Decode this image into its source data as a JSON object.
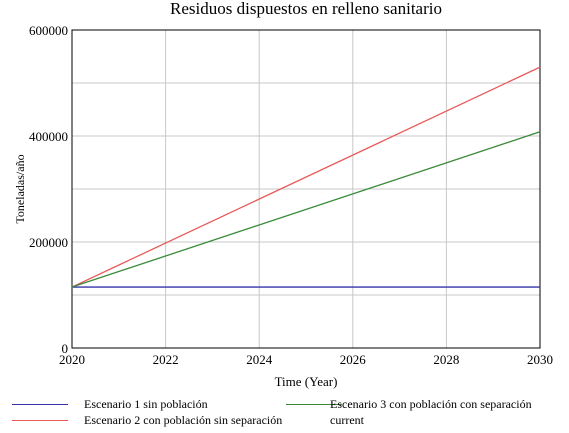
{
  "chart_data": {
    "type": "line",
    "title": "Residuos dispuestos en relleno sanitario",
    "xlabel": "Time (Year)",
    "ylabel": "Toneladas/año",
    "x": [
      2020,
      2030
    ],
    "xlim": [
      2020,
      2030
    ],
    "ylim": [
      0,
      600000
    ],
    "xticks": [
      "2020",
      "2022",
      "2024",
      "2026",
      "2028",
      "2030"
    ],
    "yticks": [
      "0",
      "200000",
      "400000",
      "600000"
    ],
    "grid": true,
    "legend_position": "bottom",
    "series": [
      {
        "name": "Escenario 1 sin población",
        "color": "#3333aa",
        "values": [
          115000,
          115000
        ]
      },
      {
        "name": "Escenario 2 con población sin separación",
        "color": "#e85a5a",
        "values": [
          115000,
          530000
        ]
      },
      {
        "name": "Escenario 3 con población con separación",
        "color": "#3a8a3a",
        "values": [
          115000,
          408000
        ]
      }
    ],
    "legend_note": "current"
  }
}
